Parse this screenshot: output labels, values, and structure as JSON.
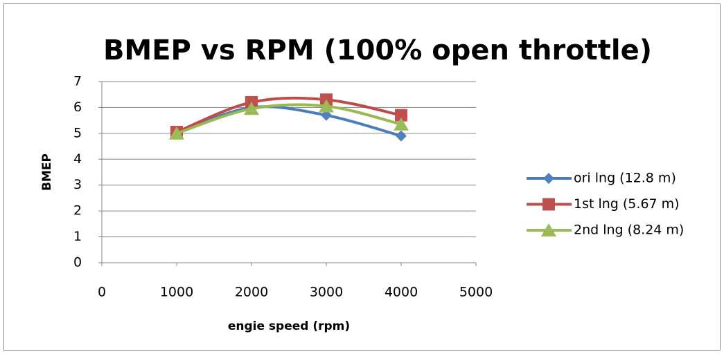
{
  "chart_data": {
    "type": "line",
    "smooth": true,
    "title": "BMEP vs RPM (100% open throttle)",
    "x_label": "engie speed (rpm)",
    "y_label": "BMEP",
    "x": [
      1000,
      2000,
      3000,
      4000
    ],
    "series": [
      {
        "name": "ori lng (12.8 m)",
        "color": "#4a7ebb",
        "marker": "diamond",
        "marker_color": "#4f81bd",
        "values": [
          5.0,
          6.0,
          5.7,
          4.9
        ]
      },
      {
        "name": "1st lng (5.67 m)",
        "color": "#be4b48",
        "marker": "square",
        "marker_color": "#c0504d",
        "values": [
          5.05,
          6.2,
          6.3,
          5.7
        ]
      },
      {
        "name": "2nd lng (8.24 m)",
        "color": "#98b954",
        "marker": "triangle",
        "marker_color": "#9bbb59",
        "values": [
          5.0,
          5.95,
          6.05,
          5.35
        ]
      }
    ],
    "xlim": [
      0,
      5000
    ],
    "xticks": [
      0,
      1000,
      2000,
      3000,
      4000,
      5000
    ],
    "ylim": [
      0,
      7
    ],
    "yticks": [
      0,
      1,
      2,
      3,
      4,
      5,
      6,
      7
    ],
    "grid": true,
    "legend": "right"
  }
}
